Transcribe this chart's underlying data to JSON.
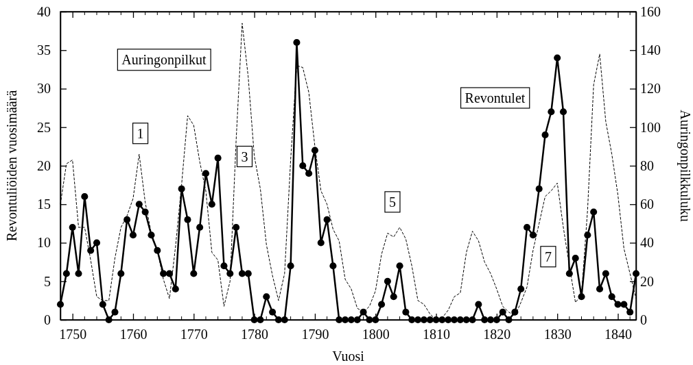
{
  "chart_data": {
    "type": "line",
    "xlabel": "Vuosi",
    "ylabel": "Revontuliöiden vuosimäärä",
    "y2label": "Auringonpilkkuluku",
    "xlim": [
      1748,
      1843
    ],
    "xticks": [
      1750,
      1760,
      1770,
      1780,
      1790,
      1800,
      1810,
      1820,
      1830,
      1840
    ],
    "ylim": [
      0,
      40
    ],
    "yticks": [
      0,
      5,
      10,
      15,
      20,
      25,
      30,
      35,
      40
    ],
    "y2lim": [
      0,
      160
    ],
    "y2ticks": [
      0,
      20,
      40,
      60,
      80,
      100,
      120,
      140,
      160
    ],
    "grid": false,
    "legend": false,
    "x": [
      1748,
      1749,
      1750,
      1751,
      1752,
      1753,
      1754,
      1755,
      1756,
      1757,
      1758,
      1759,
      1760,
      1761,
      1762,
      1763,
      1764,
      1765,
      1766,
      1767,
      1768,
      1769,
      1770,
      1771,
      1772,
      1773,
      1774,
      1775,
      1776,
      1777,
      1778,
      1779,
      1780,
      1781,
      1782,
      1783,
      1784,
      1785,
      1786,
      1787,
      1788,
      1789,
      1790,
      1791,
      1792,
      1793,
      1794,
      1795,
      1796,
      1797,
      1798,
      1799,
      1800,
      1801,
      1802,
      1803,
      1804,
      1805,
      1806,
      1807,
      1808,
      1809,
      1810,
      1811,
      1812,
      1813,
      1814,
      1815,
      1816,
      1817,
      1818,
      1819,
      1820,
      1821,
      1822,
      1823,
      1824,
      1825,
      1826,
      1827,
      1828,
      1829,
      1830,
      1831,
      1832,
      1833,
      1834,
      1835,
      1836,
      1837,
      1838,
      1839,
      1840,
      1841,
      1842,
      1843
    ],
    "series": [
      {
        "name": "Revontulet",
        "color": "#000000",
        "marker": "circle",
        "line_style": "solid",
        "values": [
          2,
          6,
          12,
          6,
          16,
          9,
          10,
          2,
          0,
          1,
          6,
          13,
          11,
          15,
          14,
          11,
          9,
          6,
          6,
          4,
          17,
          13,
          6,
          12,
          19,
          15,
          21,
          7,
          6,
          12,
          6,
          6,
          0,
          0,
          3,
          1,
          0,
          0,
          7,
          36,
          20,
          19,
          22,
          10,
          13,
          7,
          0,
          0,
          0,
          0,
          1,
          0,
          0,
          2,
          5,
          3,
          7,
          1,
          0,
          0,
          0,
          0,
          0,
          0,
          0,
          0,
          0,
          0,
          0,
          2,
          0,
          0,
          0,
          1,
          0,
          1,
          4,
          12,
          11,
          17,
          24,
          27,
          34,
          27,
          6,
          8,
          3,
          11,
          14,
          4,
          6,
          3,
          2,
          2,
          1,
          6
        ]
      },
      {
        "name": "Auringonpilkut",
        "color": "#000000",
        "marker": "none",
        "line_style": "dashed",
        "axis": "y2",
        "values": [
          60,
          81,
          83,
          48,
          48,
          31,
          12,
          10,
          10,
          32,
          48,
          54,
          63,
          86,
          61,
          45,
          36,
          21,
          11,
          38,
          70,
          106,
          101,
          82,
          67,
          35,
          31,
          7,
          20,
          93,
          154,
          126,
          85,
          68,
          39,
          23,
          10,
          24,
          83,
          132,
          131,
          118,
          90,
          67,
          60,
          47,
          41,
          21,
          16,
          6,
          4,
          7,
          15,
          34,
          45,
          43,
          48,
          42,
          28,
          10,
          8,
          3,
          0,
          1,
          5,
          12,
          14,
          35,
          46,
          41,
          30,
          24,
          16,
          7,
          4,
          2,
          9,
          17,
          36,
          50,
          64,
          67,
          71,
          48,
          28,
          9,
          13,
          57,
          122,
          138,
          103,
          86,
          65,
          37,
          24,
          11
        ]
      }
    ],
    "annotations": [
      {
        "text": "1",
        "x": 1761.2,
        "y": 24.2
      },
      {
        "text": "3",
        "x": 1778.4,
        "y": 21.2
      },
      {
        "text": "5",
        "x": 1802.8,
        "y": 15.3
      },
      {
        "text": "7",
        "x": 1828.5,
        "y": 8.2
      }
    ]
  }
}
